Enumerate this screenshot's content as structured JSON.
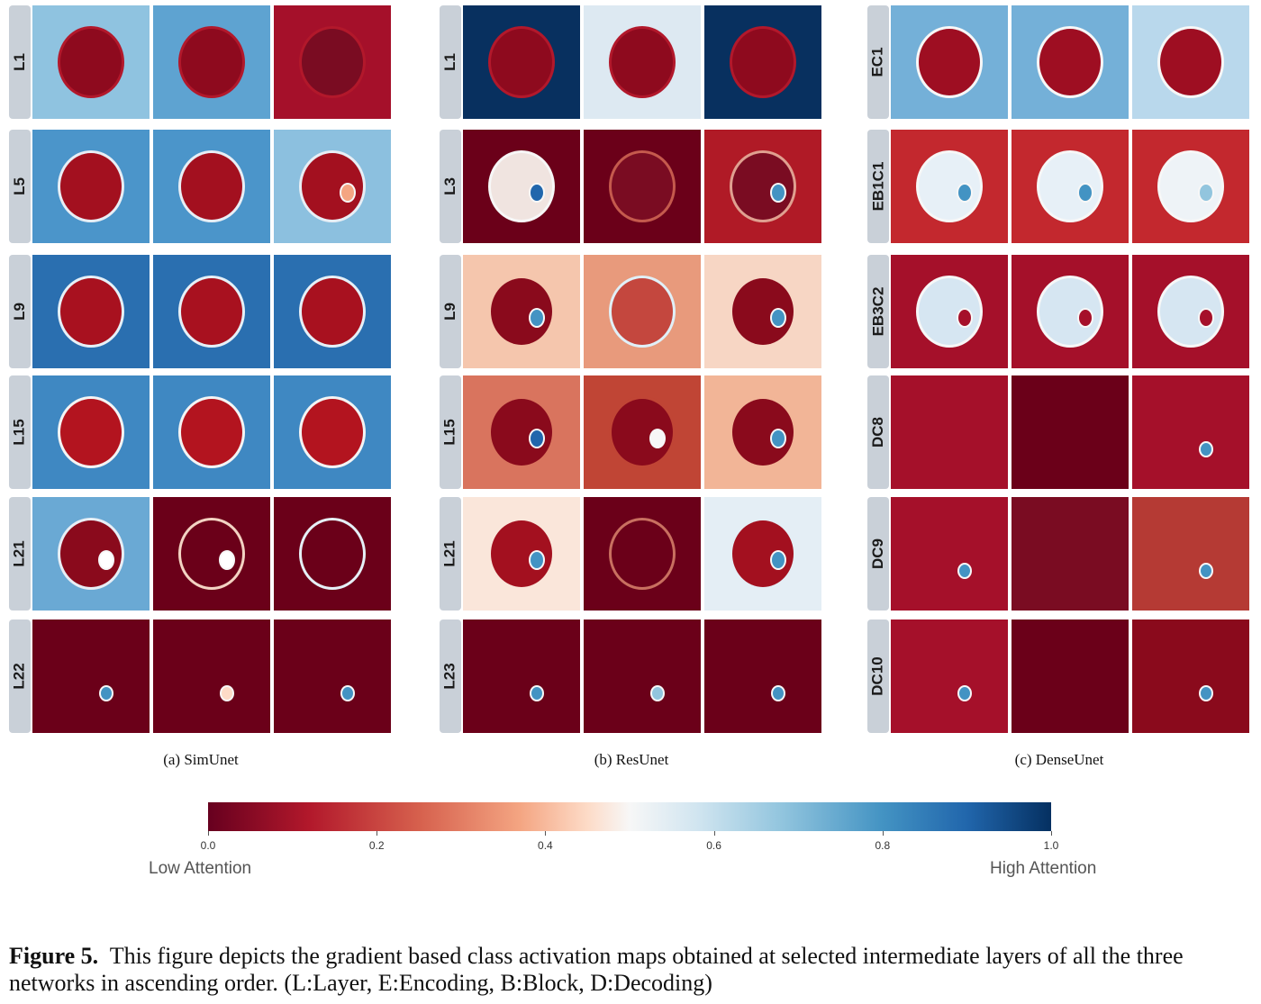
{
  "panels": [
    {
      "caption": "(a) SimUnet",
      "rows": [
        {
          "label": "L1",
          "cells": [
            {
              "bg": "#8fc3e0",
              "fg": "#8e0a1e",
              "ring": "#b2182b",
              "dot": null
            },
            {
              "bg": "#5ea3d1",
              "fg": "#8e0a1e",
              "ring": "#b2182b",
              "dot": null
            },
            {
              "bg": "#a5102a",
              "fg": "#7a0c22",
              "ring": "#b2182b",
              "dot": null
            }
          ]
        },
        {
          "label": "L5",
          "cells": [
            {
              "bg": "#4b95ca",
              "fg": "#a3101f",
              "ring": "#e8eef5",
              "dot": null
            },
            {
              "bg": "#4b95ca",
              "fg": "#a3101f",
              "ring": "#e8eef5",
              "dot": null
            },
            {
              "bg": "#8cc0df",
              "fg": "#a3101f",
              "ring": "#e8eef5",
              "dot": "#f4a582"
            }
          ]
        },
        {
          "label": "L9",
          "cells": [
            {
              "bg": "#2a6fb0",
              "fg": "#a8111f",
              "ring": "#e6f0f7",
              "dot": null
            },
            {
              "bg": "#2a6fb0",
              "fg": "#a8111f",
              "ring": "#e6f0f7",
              "dot": null
            },
            {
              "bg": "#2a6fb0",
              "fg": "#a8111f",
              "ring": "#e6f0f7",
              "dot": null
            }
          ]
        },
        {
          "label": "L15",
          "cells": [
            {
              "bg": "#3f88c2",
              "fg": "#b3141f",
              "ring": "#f4f4f4",
              "dot": null
            },
            {
              "bg": "#3f88c2",
              "fg": "#b3141f",
              "ring": "#f4f4f4",
              "dot": null
            },
            {
              "bg": "#3f88c2",
              "fg": "#b3141f",
              "ring": "#f4f4f4",
              "dot": null
            }
          ]
        },
        {
          "label": "L21",
          "cells": [
            {
              "bg": "#6aa9d4",
              "fg": "#8a0a1c",
              "ring": "#e8eef5",
              "dot": "#ffffff"
            },
            {
              "bg": "#6b0019",
              "fg": "#6b0019",
              "ring": "#f3d3c3",
              "dot": "#ffffff"
            },
            {
              "bg": "#6b0019",
              "fg": "#6b0019",
              "ring": "#e6f0f7",
              "dot": null
            }
          ]
        },
        {
          "label": "L22",
          "cells": [
            {
              "bg": "#6b0019",
              "fg": "#6b0019",
              "ring": "#6b0019",
              "dot": "#4393c3"
            },
            {
              "bg": "#6b0019",
              "fg": "#6b0019",
              "ring": "#6b0019",
              "dot": "#fddbc7"
            },
            {
              "bg": "#6b0019",
              "fg": "#6b0019",
              "ring": "#6b0019",
              "dot": "#4393c3"
            }
          ]
        }
      ]
    },
    {
      "caption": "(b) ResUnet",
      "rows": [
        {
          "label": "L1",
          "cells": [
            {
              "bg": "#08305f",
              "fg": "#8e0a1e",
              "ring": "#b2182b",
              "dot": null
            },
            {
              "bg": "#dde9f2",
              "fg": "#8e0a1e",
              "ring": "#b2182b",
              "dot": null
            },
            {
              "bg": "#08305f",
              "fg": "#8e0a1e",
              "ring": "#b2182b",
              "dot": null
            }
          ]
        },
        {
          "label": "L3",
          "cells": [
            {
              "bg": "#6b0019",
              "fg": "#f0e4e0",
              "ring": "#f7f7f7",
              "dot": "#2166ac"
            },
            {
              "bg": "#6b0019",
              "fg": "#7a0c22",
              "ring": "#c55a4d",
              "dot": null
            },
            {
              "bg": "#b01a26",
              "fg": "#7a0c22",
              "ring": "#e0a090",
              "dot": "#4393c3"
            }
          ]
        },
        {
          "label": "L9",
          "cells": [
            {
              "bg": "#f5c6ad",
              "fg": "#8a0a1c",
              "ring": "#f5c6ad",
              "dot": "#4393c3"
            },
            {
              "bg": "#e89a7c",
              "fg": "#c4473e",
              "ring": "#e0f0f8",
              "dot": null
            },
            {
              "bg": "#f7d6c4",
              "fg": "#8a0a1c",
              "ring": "#f7d6c4",
              "dot": "#4393c3"
            }
          ]
        },
        {
          "label": "L15",
          "cells": [
            {
              "bg": "#d9745e",
              "fg": "#8a0a1c",
              "ring": "#d9745e",
              "dot": "#2166ac"
            },
            {
              "bg": "#c04535",
              "fg": "#8a0a1c",
              "ring": "#c04535",
              "dot": "#f7f7f7"
            },
            {
              "bg": "#f2b597",
              "fg": "#8a0a1c",
              "ring": "#f2b597",
              "dot": "#4393c3"
            }
          ]
        },
        {
          "label": "L21",
          "cells": [
            {
              "bg": "#fae6da",
              "fg": "#a3101f",
              "ring": "#fae6da",
              "dot": "#4393c3"
            },
            {
              "bg": "#6b0019",
              "fg": "#6b0019",
              "ring": "#c97060",
              "dot": null
            },
            {
              "bg": "#e4eef5",
              "fg": "#a3101f",
              "ring": "#e4eef5",
              "dot": "#4393c3"
            }
          ]
        },
        {
          "label": "L23",
          "cells": [
            {
              "bg": "#6b0019",
              "fg": "#6b0019",
              "ring": "#6b0019",
              "dot": "#4393c3"
            },
            {
              "bg": "#6b0019",
              "fg": "#8e1d2a",
              "ring": "#a53a3a",
              "dot": "#92c5de"
            },
            {
              "bg": "#6b0019",
              "fg": "#6b0019",
              "ring": "#6b0019",
              "dot": "#4393c3"
            }
          ]
        }
      ]
    },
    {
      "caption": "(c) DenseUnet",
      "rows": [
        {
          "label": "EC1",
          "cells": [
            {
              "bg": "#74b0d8",
              "fg": "#9e0e22",
              "ring": "#f7f7f7",
              "dot": null
            },
            {
              "bg": "#74b0d8",
              "fg": "#9e0e22",
              "ring": "#f7f7f7",
              "dot": null
            },
            {
              "bg": "#b9d8ec",
              "fg": "#9e0e22",
              "ring": "#f7f7f7",
              "dot": null
            }
          ]
        },
        {
          "label": "EB1C1",
          "cells": [
            {
              "bg": "#c3282e",
              "fg": "#e7f0f7",
              "ring": "#f7f7f7",
              "dot": "#4393c3"
            },
            {
              "bg": "#c3282e",
              "fg": "#e7f0f7",
              "ring": "#f7f7f7",
              "dot": "#4393c3"
            },
            {
              "bg": "#c3282e",
              "fg": "#eef3f7",
              "ring": "#f7f7f7",
              "dot": "#92c5de"
            }
          ]
        },
        {
          "label": "EB3C2",
          "cells": [
            {
              "bg": "#a5102a",
              "fg": "#d6e6f2",
              "ring": "#f7f7f7",
              "dot": "#a5102a"
            },
            {
              "bg": "#a5102a",
              "fg": "#d6e6f2",
              "ring": "#f7f7f7",
              "dot": "#a5102a"
            },
            {
              "bg": "#a5102a",
              "fg": "#d6e6f2",
              "ring": "#f7f7f7",
              "dot": "#a5102a"
            }
          ]
        },
        {
          "label": "DC8",
          "cells": [
            {
              "bg": "#a5102a",
              "fg": "#a5102a",
              "ring": "#a5102a",
              "dot": null
            },
            {
              "bg": "#6b0019",
              "fg": "#6b0019",
              "ring": "#6b0019",
              "dot": null
            },
            {
              "bg": "#a5102a",
              "fg": "#a5102a",
              "ring": "#a5102a",
              "dot": "#4393c3"
            }
          ]
        },
        {
          "label": "DC9",
          "cells": [
            {
              "bg": "#a5102a",
              "fg": "#a5102a",
              "ring": "#a5102a",
              "dot": "#4393c3"
            },
            {
              "bg": "#7a0c22",
              "fg": "#7a0c22",
              "ring": "#7a0c22",
              "dot": null
            },
            {
              "bg": "#b53a34",
              "fg": "#8a0a1c",
              "ring": "#a52a2a",
              "dot": "#4393c3"
            }
          ]
        },
        {
          "label": "DC10",
          "cells": [
            {
              "bg": "#a5102a",
              "fg": "#a5102a",
              "ring": "#a5102a",
              "dot": "#4393c3"
            },
            {
              "bg": "#6b0019",
              "fg": "#7a0c22",
              "ring": "#f7f7f7",
              "dot": null
            },
            {
              "bg": "#8a0a1c",
              "fg": "#8a0a1c",
              "ring": "#8a0a1c",
              "dot": "#4393c3"
            }
          ]
        }
      ]
    }
  ],
  "colorbar": {
    "ticks": [
      "0.0",
      "0.2",
      "0.4",
      "0.6",
      "0.8",
      "1.0"
    ],
    "low_label": "Low Attention",
    "high_label": "High Attention"
  },
  "caption": {
    "label": "Figure 5.",
    "text": "This figure depicts the gradient based class activation maps obtained at selected intermediate layers of all the three networks in ascending order. (L:Layer, E:Encoding, B:Block, D:Decoding)"
  }
}
